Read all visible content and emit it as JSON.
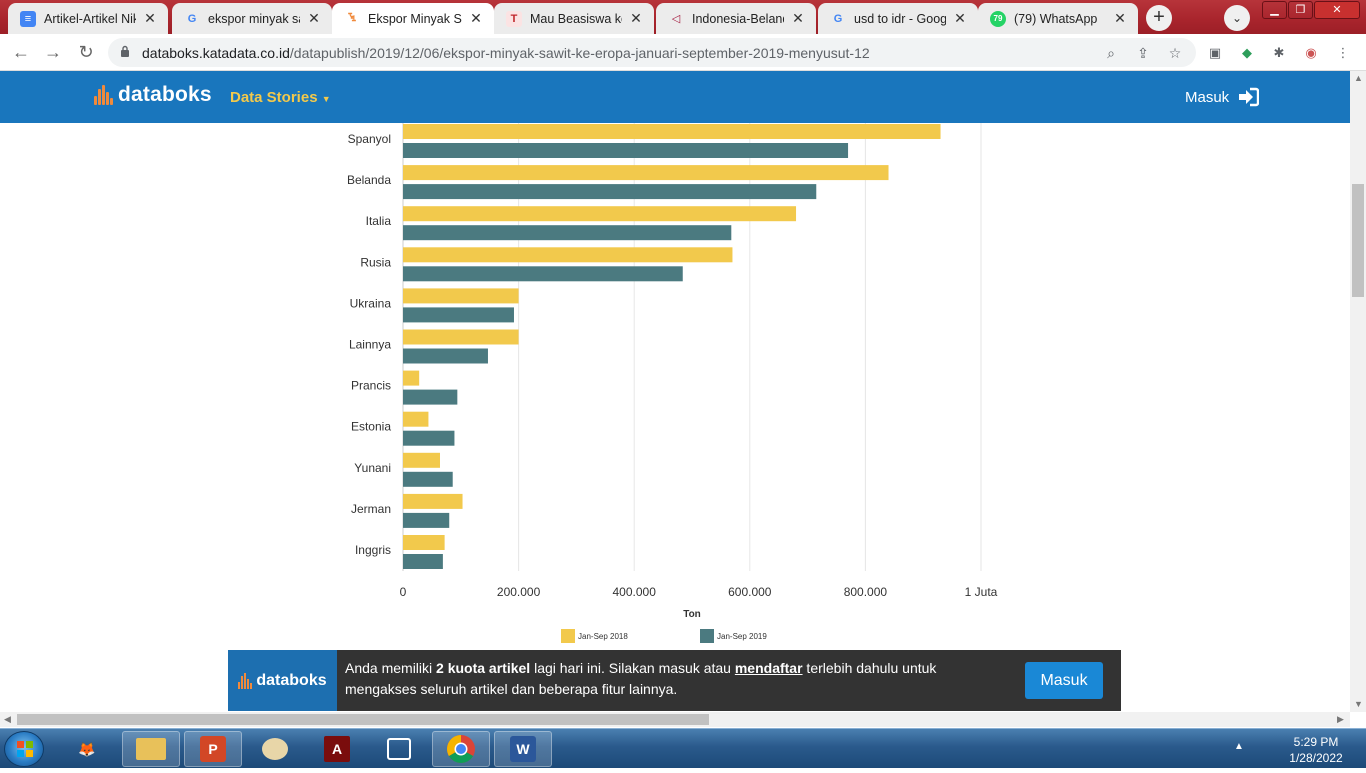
{
  "browser": {
    "tabs": [
      {
        "title": "Artikel-Artikel Nik",
        "icon": "docs-icon",
        "active": false
      },
      {
        "title": "ekspor minyak saw",
        "icon": "google-icon",
        "active": false
      },
      {
        "title": "Ekspor Minyak Sa",
        "icon": "databoks-icon",
        "active": true
      },
      {
        "title": "Mau Beasiswa ke E",
        "icon": "tempo-icon",
        "active": false
      },
      {
        "title": "Indonesia-Belanda",
        "icon": "triangle-icon",
        "active": false
      },
      {
        "title": "usd to idr - Googl",
        "icon": "google-icon",
        "active": false
      },
      {
        "title": "(79) WhatsApp",
        "icon": "whatsapp-icon",
        "active": false
      }
    ],
    "whatsapp_badge": "79",
    "new_tab_label": "+",
    "url_host": "databoks.katadata.co.id",
    "url_path": "/datapublish/2019/12/06/ekspor-minyak-sawit-ke-eropa-januari-september-2019-menyusut-12"
  },
  "site": {
    "logo_text": "databoks",
    "nav_label": "Data Stories",
    "login_label": "Masuk"
  },
  "chart_data": {
    "type": "bar",
    "orientation": "horizontal",
    "categories": [
      "Spanyol",
      "Belanda",
      "Italia",
      "Rusia",
      "Ukraina",
      "Lainnya",
      "Prancis",
      "Estonia",
      "Yunani",
      "Jerman",
      "Inggris"
    ],
    "series": [
      {
        "name": "Jan-Sep 2018",
        "color": "#f2c94c",
        "values": [
          930000,
          840000,
          680000,
          570000,
          200000,
          200000,
          28000,
          44000,
          64000,
          103000,
          72000
        ]
      },
      {
        "name": "Jan-Sep 2019",
        "color": "#4b7a80",
        "values": [
          770000,
          715000,
          568000,
          484000,
          192000,
          147000,
          94000,
          89000,
          86000,
          80000,
          69000
        ]
      }
    ],
    "xlabel": "Ton",
    "xticks": [
      0,
      200000,
      400000,
      600000,
      800000,
      1000000
    ],
    "xtick_labels": [
      "0",
      "200.000",
      "400.000",
      "600.000",
      "800.000",
      "1 Juta"
    ],
    "xlim": [
      0,
      1000000
    ],
    "grid": true,
    "legend_position": "bottom"
  },
  "banner": {
    "logo_text": "databoks",
    "text_prefix": "Anda memiliki ",
    "quota": "2 kuota artikel",
    "text_mid": " lagi hari ini. Silakan masuk atau ",
    "register": "mendaftar",
    "text_suffix": " terlebih dahulu untuk mengakses seluruh artikel dan beberapa fitur lainnya.",
    "button_label": "Masuk"
  },
  "taskbar": {
    "time": "5:29 PM",
    "date": "1/28/2022",
    "apps": [
      {
        "name": "firefox-app"
      },
      {
        "name": "explorer-app"
      },
      {
        "name": "powerpoint-app"
      },
      {
        "name": "paint-app"
      },
      {
        "name": "acrobat-app"
      },
      {
        "name": "snipping-app"
      },
      {
        "name": "chrome-app"
      },
      {
        "name": "word-app"
      }
    ]
  }
}
